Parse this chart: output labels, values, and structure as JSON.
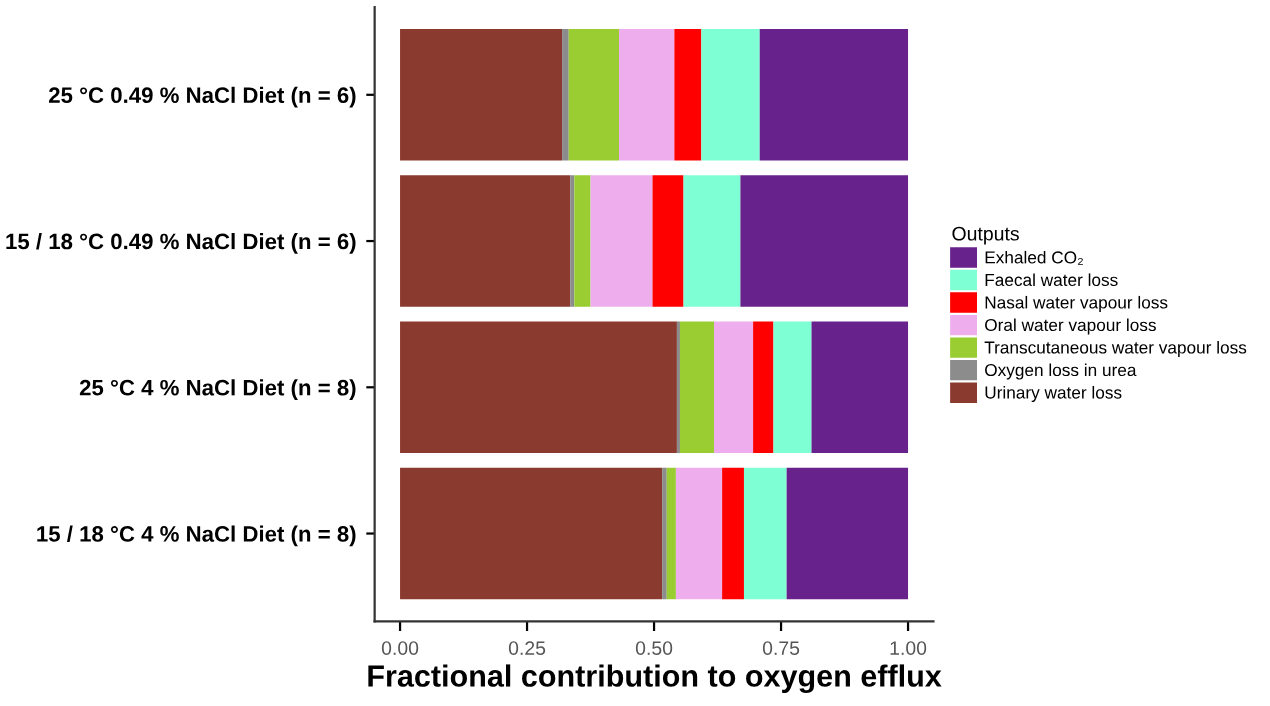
{
  "chart_data": {
    "type": "bar",
    "orientation": "horizontal",
    "stacked": true,
    "xlabel": "Fractional contribution to oxygen efflux",
    "legend_title": "Outputs",
    "legend": "right",
    "grid": false,
    "categories": [
      "25 °C 0.49 % NaCl Diet (n = 6)",
      "15 / 18 °C 0.49 % NaCl Diet (n = 6)",
      "25 °C 4 % NaCl Diet (n = 8)",
      "15 / 18 °C 4 % NaCl Diet (n = 8)"
    ],
    "xlim": [
      -0.05,
      1.05
    ],
    "xticks": [
      {
        "value": 0,
        "label": "0.00"
      },
      {
        "value": 0.25,
        "label": "0.25"
      },
      {
        "value": 0.5,
        "label": "0.50"
      },
      {
        "value": 0.75,
        "label": "0.75"
      },
      {
        "value": 1,
        "label": "1.00"
      }
    ],
    "series": [
      {
        "name": "Urinary water loss",
        "color": "#8b3a2f",
        "values": [
          0.319,
          0.335,
          0.545,
          0.516
        ]
      },
      {
        "name": "Oxygen loss in urea",
        "color": "#8c8c8c",
        "values": [
          0.013,
          0.008,
          0.006,
          0.009
        ]
      },
      {
        "name": "Transcutaneous water vapour loss",
        "color": "#9acd32",
        "values": [
          0.099,
          0.032,
          0.067,
          0.018
        ]
      },
      {
        "name": "Oral water vapour loss",
        "color": "#eeaeee",
        "values": [
          0.109,
          0.122,
          0.077,
          0.091
        ]
      },
      {
        "name": "Nasal water vapour loss",
        "color": "#ff0000",
        "values": [
          0.053,
          0.061,
          0.04,
          0.043
        ]
      },
      {
        "name": "Faecal water loss",
        "color": "#7fffd4",
        "values": [
          0.115,
          0.112,
          0.075,
          0.084
        ]
      },
      {
        "name": "Exhaled CO₂",
        "color": "#68228b",
        "values": [
          0.292,
          0.33,
          0.19,
          0.239
        ]
      }
    ]
  }
}
